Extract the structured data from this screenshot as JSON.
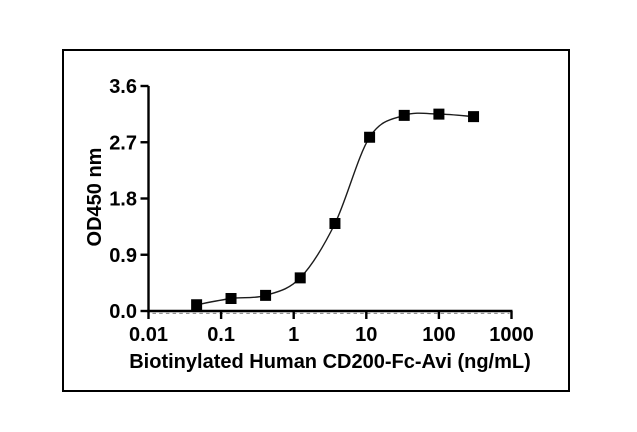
{
  "figure": {
    "background_color": "#ffffff",
    "frame_border_color": "#000000",
    "axis_color": "#000000",
    "text_color": "#000000"
  },
  "chart_data": {
    "type": "scatter",
    "title": "",
    "xlabel": "Biotinylated Human CD200-Fc-Avi (ng/mL)",
    "ylabel": "OD450 nm",
    "x_scale": "log10",
    "xlim": [
      0.01,
      1000
    ],
    "ylim": [
      0.0,
      3.6
    ],
    "x_tick_labels": [
      "0.01",
      "0.1",
      "1",
      "10",
      "100",
      "1000"
    ],
    "y_tick_labels": [
      "0.0",
      "0.9",
      "1.8",
      "2.7",
      "3.6"
    ],
    "grid": false,
    "legend": false,
    "marker": "filled-square",
    "marker_color": "#000000",
    "marker_size_px": 11,
    "curve_style": "sigmoidal-4PL-fit-through-points",
    "curve_color": "#1c1c1c",
    "points": [
      {
        "x": 0.046,
        "y": 0.1
      },
      {
        "x": 0.137,
        "y": 0.2
      },
      {
        "x": 0.41,
        "y": 0.25
      },
      {
        "x": 1.23,
        "y": 0.53
      },
      {
        "x": 3.7,
        "y": 1.4
      },
      {
        "x": 11.1,
        "y": 2.78
      },
      {
        "x": 33.3,
        "y": 3.13
      },
      {
        "x": 100,
        "y": 3.15
      },
      {
        "x": 300,
        "y": 3.11
      }
    ]
  }
}
